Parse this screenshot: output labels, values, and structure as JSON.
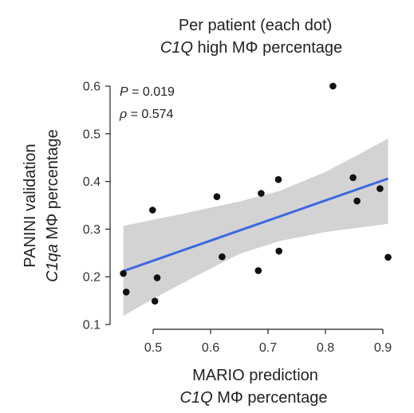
{
  "chart_data": {
    "type": "scatter",
    "title_line1": "Per patient (each dot)",
    "title_line2_italic": "C1Q",
    "title_line2_rest": " high MΦ percentage",
    "xlabel_line1": "MARIO prediction",
    "xlabel_line2_italic": "C1Q",
    "xlabel_line2_rest": " MΦ percentage",
    "ylabel_line1": "PANINI validation",
    "ylabel_line2_italic": "C1qa",
    "ylabel_line2_rest": " MΦ percentage",
    "stat_p_symbol": "P",
    "stat_p_value": " = 0.019",
    "stat_rho_symbol": "ρ",
    "stat_rho_value": " = 0.574",
    "xlim": [
      0.44,
      0.91
    ],
    "ylim": [
      0.1,
      0.6
    ],
    "xticks": [
      "0.5",
      "0.6",
      "0.7",
      "0.8",
      "0.9"
    ],
    "yticks": [
      "0.1",
      "0.2",
      "0.3",
      "0.4",
      "0.5",
      "0.6"
    ],
    "points": [
      {
        "x": 0.448,
        "y": 0.207
      },
      {
        "x": 0.453,
        "y": 0.168
      },
      {
        "x": 0.499,
        "y": 0.34
      },
      {
        "x": 0.503,
        "y": 0.149
      },
      {
        "x": 0.507,
        "y": 0.198
      },
      {
        "x": 0.611,
        "y": 0.368
      },
      {
        "x": 0.62,
        "y": 0.242
      },
      {
        "x": 0.683,
        "y": 0.213
      },
      {
        "x": 0.688,
        "y": 0.375
      },
      {
        "x": 0.718,
        "y": 0.404
      },
      {
        "x": 0.719,
        "y": 0.254
      },
      {
        "x": 0.813,
        "y": 0.6
      },
      {
        "x": 0.848,
        "y": 0.408
      },
      {
        "x": 0.855,
        "y": 0.359
      },
      {
        "x": 0.895,
        "y": 0.385
      },
      {
        "x": 0.909,
        "y": 0.241
      }
    ],
    "fit_line": {
      "x": [
        0.448,
        0.909
      ],
      "y": [
        0.212,
        0.406
      ],
      "color": "#3d68e0"
    },
    "confidence_band": {
      "upper": [
        [
          0.448,
          0.307
        ],
        [
          0.55,
          0.332
        ],
        [
          0.65,
          0.358
        ],
        [
          0.72,
          0.38
        ],
        [
          0.8,
          0.42
        ],
        [
          0.86,
          0.458
        ],
        [
          0.909,
          0.49
        ]
      ],
      "lower": [
        [
          0.448,
          0.118
        ],
        [
          0.5,
          0.154
        ],
        [
          0.58,
          0.205
        ],
        [
          0.65,
          0.248
        ],
        [
          0.72,
          0.275
        ],
        [
          0.8,
          0.294
        ],
        [
          0.909,
          0.311
        ]
      ],
      "color": "#d3d3d3"
    },
    "point_color": "#111111",
    "grid": false
  }
}
